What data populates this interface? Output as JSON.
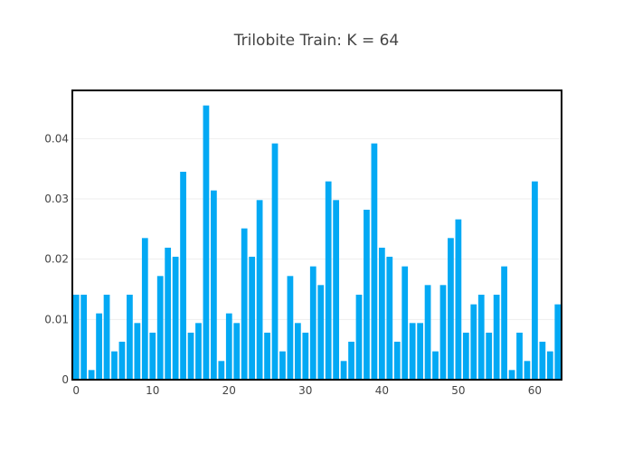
{
  "chart_data": {
    "type": "bar",
    "title": "Trilobite Train: K = 64",
    "xlabel": "",
    "ylabel": "",
    "bar_color": "#03a9f4",
    "frame_color": "#000000",
    "grid": true,
    "xlim": [
      -0.5,
      63.5
    ],
    "ylim": [
      0,
      0.048
    ],
    "x_ticks": [
      0,
      10,
      20,
      30,
      40,
      50,
      60
    ],
    "y_ticks": [
      0,
      0.01,
      0.02,
      0.03,
      0.04
    ],
    "y_tick_labels": [
      "0",
      "0.01",
      "0.02",
      "0.03",
      "0.04"
    ],
    "x": [
      0,
      1,
      2,
      3,
      4,
      5,
      6,
      7,
      8,
      9,
      10,
      11,
      12,
      13,
      14,
      15,
      16,
      17,
      18,
      19,
      20,
      21,
      22,
      23,
      24,
      25,
      26,
      27,
      28,
      29,
      30,
      31,
      32,
      33,
      34,
      35,
      36,
      37,
      38,
      39,
      40,
      41,
      42,
      43,
      44,
      45,
      46,
      47,
      48,
      49,
      50,
      51,
      52,
      53,
      54,
      55,
      56,
      57,
      58,
      59,
      60,
      61,
      62,
      63
    ],
    "values": [
      0.0141,
      0.0141,
      0.0016,
      0.011,
      0.0141,
      0.0047,
      0.0063,
      0.0141,
      0.0094,
      0.0235,
      0.0078,
      0.0172,
      0.0219,
      0.0204,
      0.0345,
      0.0078,
      0.0094,
      0.0455,
      0.0314,
      0.0031,
      0.011,
      0.0094,
      0.0251,
      0.0204,
      0.0298,
      0.0078,
      0.0392,
      0.0047,
      0.0172,
      0.0094,
      0.0078,
      0.0188,
      0.0157,
      0.0329,
      0.0298,
      0.0031,
      0.0063,
      0.0141,
      0.0282,
      0.0392,
      0.0219,
      0.0204,
      0.0063,
      0.0188,
      0.0094,
      0.0094,
      0.0157,
      0.0047,
      0.0157,
      0.0235,
      0.0266,
      0.0078,
      0.0125,
      0.0141,
      0.0078,
      0.0141,
      0.0188,
      0.0016,
      0.0078,
      0.0031,
      0.0329,
      0.0063,
      0.0047,
      0.0125
    ]
  }
}
